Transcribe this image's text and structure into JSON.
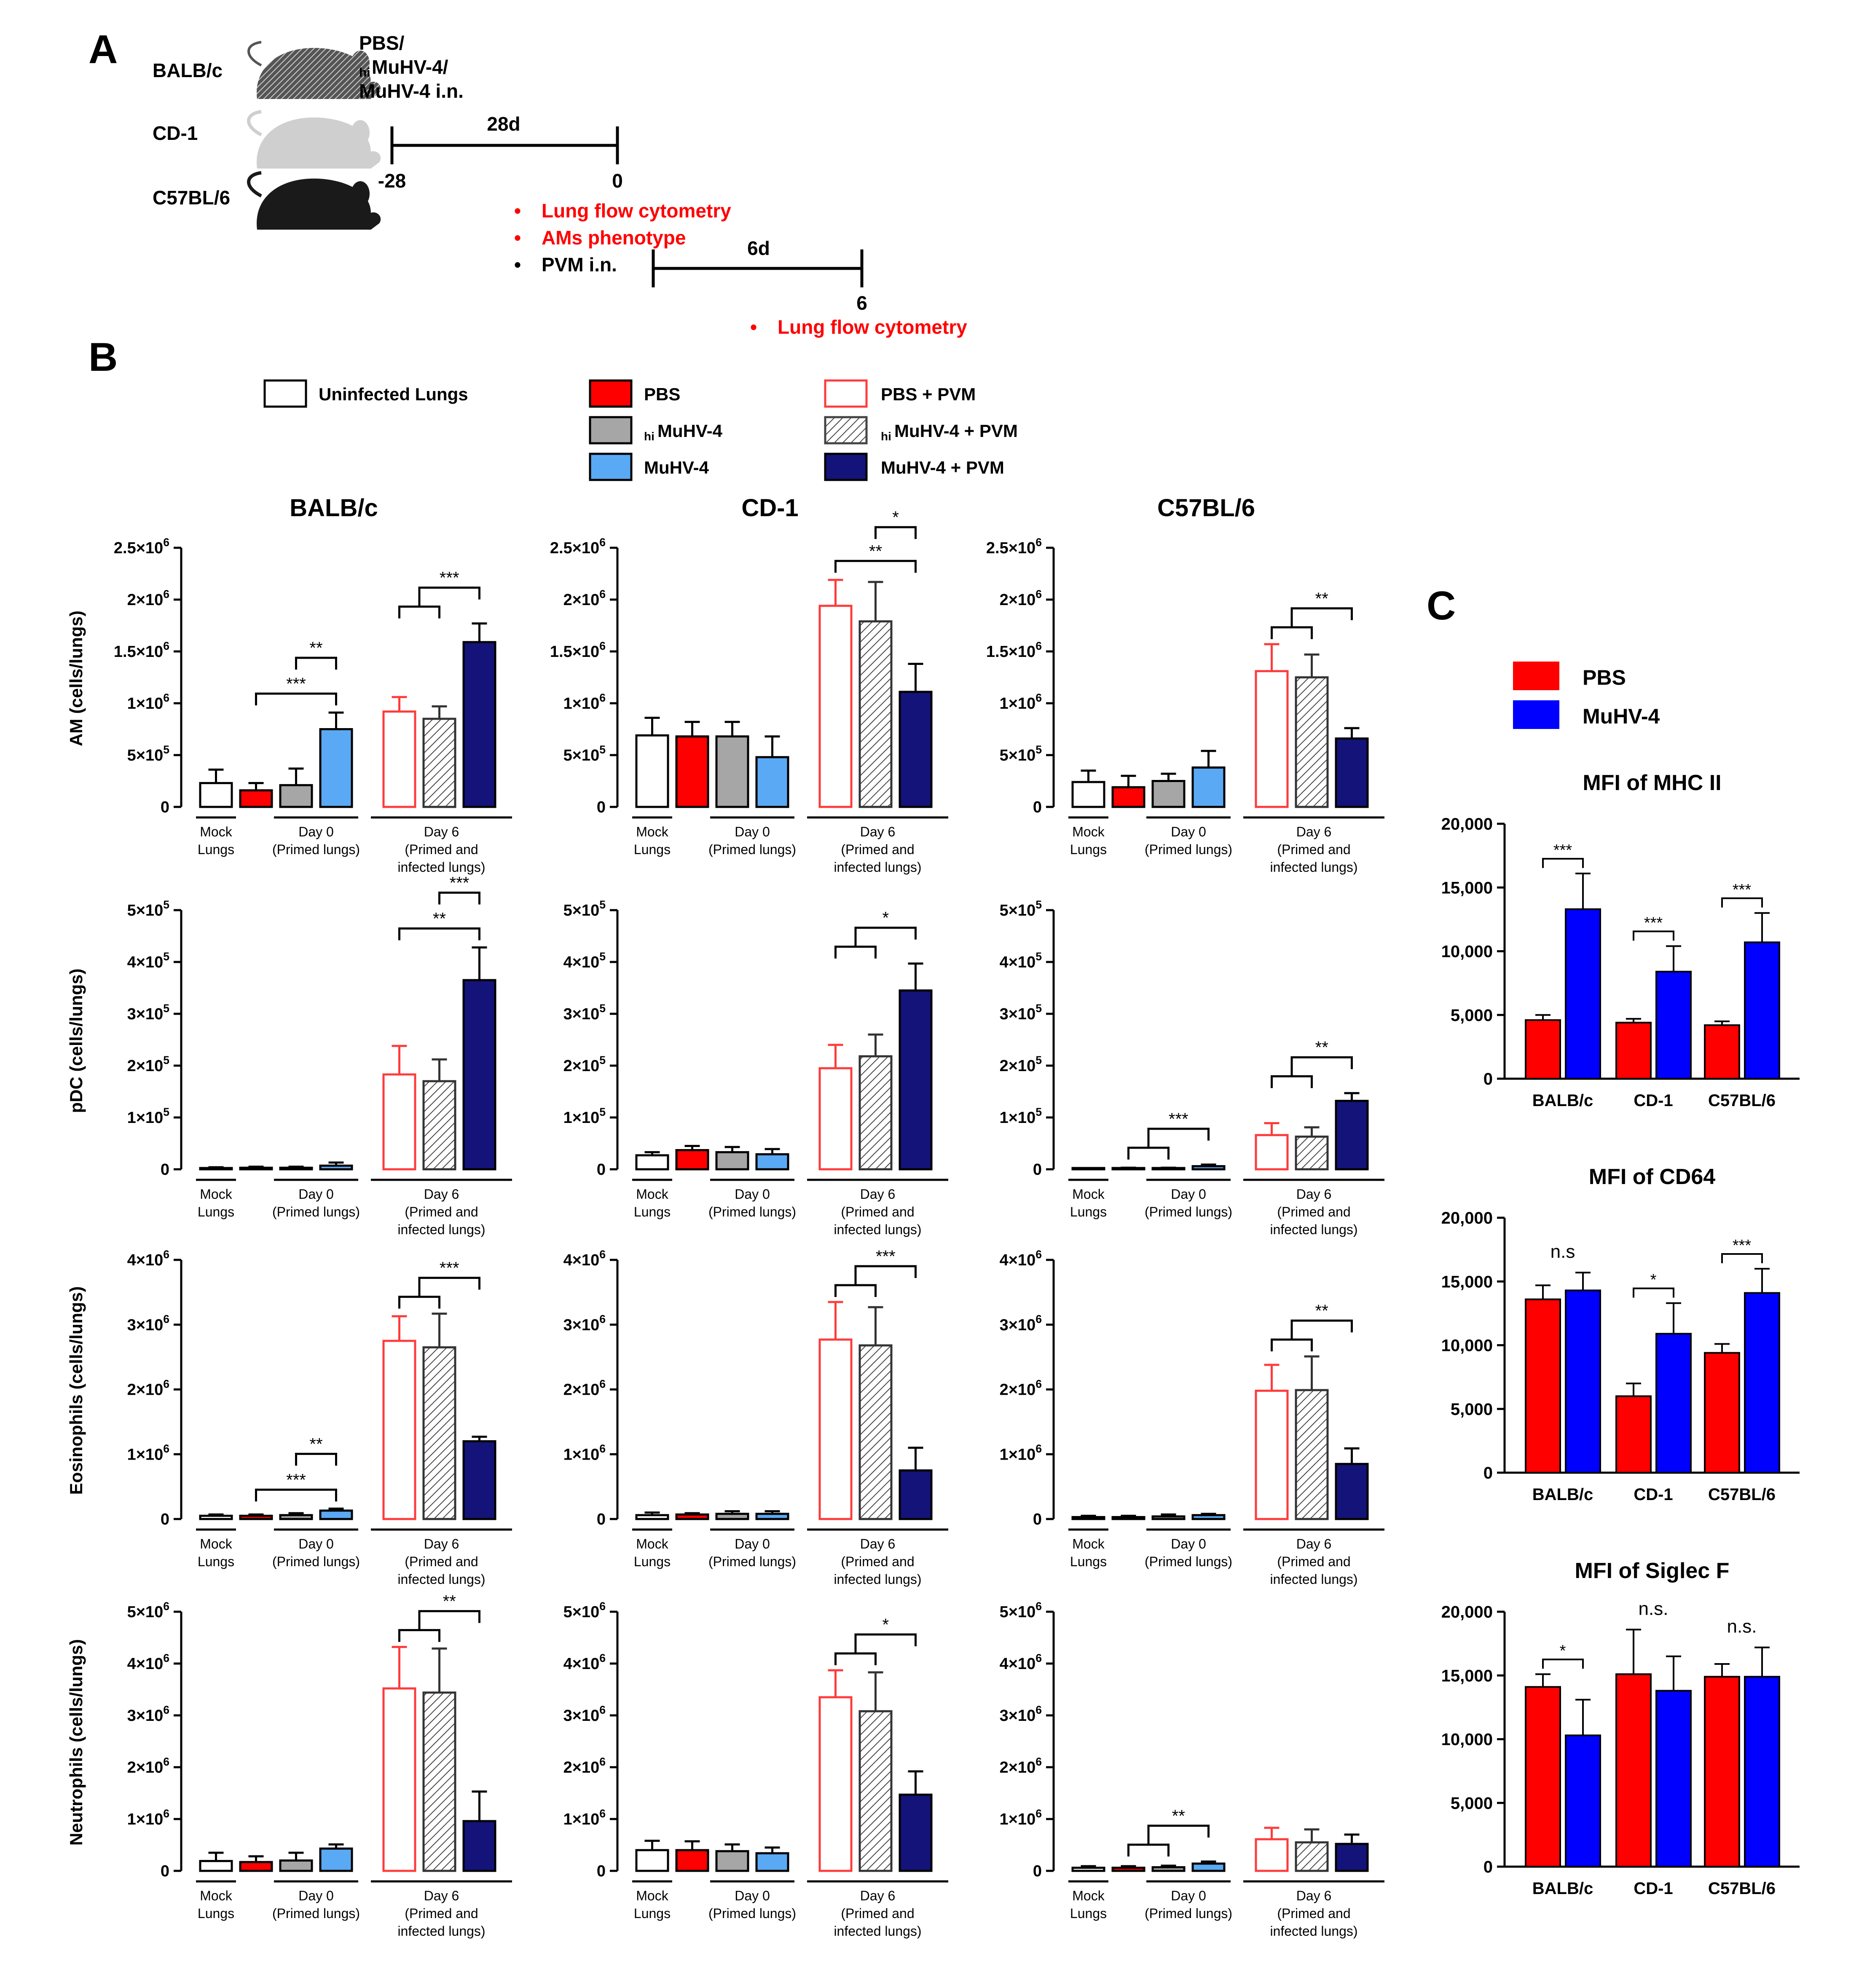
{
  "colors": {
    "pbs": "#ff0000",
    "himuhv": "#a6a6a6",
    "muhv": "#5aa9f5",
    "pvm_outline": "#ff3b3b",
    "muhv_pvm": "#14137a",
    "c_pbs": "#ff0000",
    "c_muhv": "#0000ff",
    "red_text": "#ff0000"
  },
  "panel_a": {
    "label": "A",
    "strains": [
      "BALB/c",
      "CD-1",
      "C57BL/6"
    ],
    "treatment": [
      "PBS/",
      "hi",
      "MuHV-4/",
      "MuHV-4 i.n."
    ],
    "t1_duration": "28d",
    "t1_start": "-28",
    "t1_end": "0",
    "bullets": [
      {
        "text": "Lung flow cytometry",
        "kind": "red"
      },
      {
        "text": "AMs phenotype",
        "kind": "red"
      },
      {
        "text": "PVM i.n.",
        "kind": "black"
      }
    ],
    "t2_duration": "6d",
    "t2_end": "6",
    "bullet2": "Lung flow cytometry"
  },
  "panel_b": {
    "label": "B",
    "legend": [
      {
        "label": "Uninfected Lungs",
        "style": "white"
      },
      {
        "label": "PBS",
        "style": "pbs"
      },
      {
        "label": "MuHV-4",
        "style": "himuhv",
        "sub": "hi"
      },
      {
        "label": "MuHV-4",
        "style": "muhv"
      },
      {
        "label": "PBS + PVM",
        "style": "pbs_pvm"
      },
      {
        "label": "MuHV-4 + PVM",
        "style": "himuhv_pvm",
        "sub": "hi"
      },
      {
        "label": "MuHV-4 + PVM",
        "style": "muhv_pvm"
      }
    ],
    "strain_titles": [
      "BALB/c",
      "CD-1",
      "C57BL/6"
    ],
    "xgroups": [
      [
        "Mock",
        "Lungs"
      ],
      [
        "Day 0",
        "(Primed lungs)"
      ],
      [
        "Day 6",
        "(Primed and",
        "infected lungs)"
      ]
    ],
    "row_labels": [
      "AM (cells/lungs)",
      "pDC (cells/lungs)",
      "Eosinophils (cells/lungs)",
      "Neutrophils (cells/lungs)"
    ],
    "bar_styles": [
      "white",
      "pbs",
      "himuhv",
      "muhv",
      "pbs_pvm",
      "himuhv_pvm",
      "muhv_pvm"
    ]
  },
  "panel_c": {
    "label": "C",
    "legend": [
      {
        "label": "PBS",
        "style": "c_pbs"
      },
      {
        "label": "MuHV-4",
        "style": "c_muhv"
      }
    ]
  },
  "chart_data": [
    {
      "id": "am-balbc",
      "type": "bar",
      "title": "BALB/c",
      "ylabel": "AM (cells/lungs)",
      "ylim": [
        0,
        2500000
      ],
      "ticks": [
        "0",
        "5×10⁵",
        "1×10⁶",
        "1.5×10⁶",
        "2×10⁶",
        "2.5×10⁶"
      ],
      "values": [
        230000,
        160000,
        210000,
        750000,
        920000,
        850000,
        1590000
      ],
      "errors": [
        130000,
        70000,
        160000,
        160000,
        140000,
        120000,
        180000
      ],
      "sig": [
        {
          "from": 1,
          "to": 3,
          "label": "***",
          "bracket": "simple"
        },
        {
          "from": 2,
          "to": 3,
          "label": "**",
          "bracket": "simple"
        },
        {
          "from": [
            4,
            5
          ],
          "to": 6,
          "label": "***",
          "bracket": "group"
        }
      ]
    },
    {
      "id": "am-cd1",
      "type": "bar",
      "title": "CD-1",
      "ylabel": "",
      "ylim": [
        0,
        2500000
      ],
      "ticks": [
        "0",
        "5×10⁵",
        "1×10⁶",
        "1.5×10⁶",
        "2×10⁶",
        "2.5×10⁶"
      ],
      "values": [
        690000,
        680000,
        680000,
        480000,
        1940000,
        1790000,
        1110000
      ],
      "errors": [
        170000,
        140000,
        140000,
        200000,
        250000,
        380000,
        270000
      ],
      "sig": [
        {
          "from": 4,
          "to": 6,
          "label": "**",
          "bracket": "simple"
        },
        {
          "from": 5,
          "to": 6,
          "label": "*",
          "bracket": "simple"
        }
      ]
    },
    {
      "id": "am-c57",
      "type": "bar",
      "title": "C57BL/6",
      "ylabel": "",
      "ylim": [
        0,
        2500000
      ],
      "ticks": [
        "0",
        "5×10⁵",
        "1×10⁶",
        "1.5×10⁶",
        "2×10⁶",
        "2.5×10⁶"
      ],
      "values": [
        240000,
        190000,
        250000,
        380000,
        1310000,
        1250000,
        660000
      ],
      "errors": [
        110000,
        110000,
        70000,
        160000,
        260000,
        220000,
        100000
      ],
      "sig": [
        {
          "from": [
            4,
            5
          ],
          "to": 6,
          "label": "**",
          "bracket": "group"
        }
      ]
    },
    {
      "id": "pdc-balbc",
      "type": "bar",
      "title": "",
      "ylabel": "pDC (cells/lungs)",
      "ylim": [
        0,
        500000
      ],
      "ticks": [
        "0",
        "1×10⁵",
        "2×10⁵",
        "3×10⁵",
        "4×10⁵",
        "5×10⁵"
      ],
      "values": [
        2000,
        3000,
        3000,
        7000,
        183000,
        170000,
        365000
      ],
      "errors": [
        2000,
        2000,
        2000,
        6000,
        55000,
        42000,
        63000
      ],
      "sig": [
        {
          "from": 4,
          "to": 6,
          "label": "**",
          "bracket": "simple"
        },
        {
          "from": 5,
          "to": 6,
          "label": "***",
          "bracket": "simple"
        }
      ]
    },
    {
      "id": "pdc-cd1",
      "type": "bar",
      "title": "",
      "ylabel": "",
      "ylim": [
        0,
        500000
      ],
      "ticks": [
        "0",
        "1×10⁵",
        "2×10⁵",
        "3×10⁵",
        "4×10⁵",
        "5×10⁵"
      ],
      "values": [
        27000,
        37000,
        33000,
        29000,
        195000,
        218000,
        345000
      ],
      "errors": [
        6000,
        8000,
        10000,
        10000,
        45000,
        42000,
        52000
      ],
      "sig": [
        {
          "from": [
            4,
            5
          ],
          "to": 6,
          "label": "*",
          "bracket": "group"
        }
      ]
    },
    {
      "id": "pdc-c57",
      "type": "bar",
      "title": "",
      "ylabel": "",
      "ylim": [
        0,
        500000
      ],
      "ticks": [
        "0",
        "1×10⁵",
        "2×10⁵",
        "3×10⁵",
        "4×10⁵",
        "5×10⁵"
      ],
      "values": [
        1000,
        2000,
        2000,
        6000,
        66000,
        63000,
        132000
      ],
      "errors": [
        1000,
        1000,
        1000,
        3000,
        23000,
        18000,
        15000
      ],
      "sig": [
        {
          "from": [
            1,
            2
          ],
          "to": 3,
          "label": "***",
          "bracket": "group"
        },
        {
          "from": [
            4,
            5
          ],
          "to": 6,
          "label": "**",
          "bracket": "group"
        }
      ]
    },
    {
      "id": "eos-balbc",
      "type": "bar",
      "title": "",
      "ylabel": "Eosinophils (cells/lungs)",
      "ylim": [
        0,
        4000000
      ],
      "ticks": [
        "0",
        "1×10⁶",
        "2×10⁶",
        "3×10⁶",
        "4×10⁶"
      ],
      "values": [
        50000,
        50000,
        60000,
        130000,
        2750000,
        2650000,
        1200000
      ],
      "errors": [
        20000,
        20000,
        30000,
        30000,
        380000,
        520000,
        70000
      ],
      "sig": [
        {
          "from": 1,
          "to": 3,
          "label": "***",
          "bracket": "simple"
        },
        {
          "from": 2,
          "to": 3,
          "label": "**",
          "bracket": "simple"
        },
        {
          "from": [
            4,
            5
          ],
          "to": 6,
          "label": "***",
          "bracket": "group"
        }
      ]
    },
    {
      "id": "eos-cd1",
      "type": "bar",
      "title": "",
      "ylabel": "",
      "ylim": [
        0,
        4000000
      ],
      "ticks": [
        "0",
        "1×10⁶",
        "2×10⁶",
        "3×10⁶",
        "4×10⁶"
      ],
      "values": [
        60000,
        70000,
        80000,
        80000,
        2770000,
        2680000,
        750000
      ],
      "errors": [
        40000,
        20000,
        40000,
        40000,
        580000,
        590000,
        350000
      ],
      "sig": [
        {
          "from": [
            4,
            5
          ],
          "to": 6,
          "label": "***",
          "bracket": "group"
        }
      ]
    },
    {
      "id": "eos-c57",
      "type": "bar",
      "title": "",
      "ylabel": "",
      "ylim": [
        0,
        4000000
      ],
      "ticks": [
        "0",
        "1×10⁶",
        "2×10⁶",
        "3×10⁶",
        "4×10⁶"
      ],
      "values": [
        30000,
        30000,
        40000,
        60000,
        1980000,
        1990000,
        850000
      ],
      "errors": [
        20000,
        20000,
        30000,
        20000,
        400000,
        520000,
        240000
      ],
      "sig": [
        {
          "from": [
            4,
            5
          ],
          "to": 6,
          "label": "**",
          "bracket": "group"
        }
      ]
    },
    {
      "id": "neu-balbc",
      "type": "bar",
      "title": "",
      "ylabel": "Neutrophils (cells/lungs)",
      "ylim": [
        0,
        5000000
      ],
      "ticks": [
        "0",
        "1×10⁶",
        "2×10⁶",
        "3×10⁶",
        "4×10⁶",
        "5×10⁶"
      ],
      "values": [
        190000,
        170000,
        200000,
        430000,
        3520000,
        3440000,
        960000
      ],
      "errors": [
        160000,
        110000,
        150000,
        80000,
        800000,
        850000,
        570000
      ],
      "sig": [
        {
          "from": [
            4,
            5
          ],
          "to": 6,
          "label": "**",
          "bracket": "group"
        }
      ]
    },
    {
      "id": "neu-cd1",
      "type": "bar",
      "title": "",
      "ylabel": "",
      "ylim": [
        0,
        5000000
      ],
      "ticks": [
        "0",
        "1×10⁶",
        "2×10⁶",
        "3×10⁶",
        "4×10⁶",
        "5×10⁶"
      ],
      "values": [
        400000,
        400000,
        380000,
        340000,
        3350000,
        3080000,
        1470000
      ],
      "errors": [
        180000,
        170000,
        130000,
        110000,
        520000,
        750000,
        450000
      ],
      "sig": [
        {
          "from": [
            4,
            5
          ],
          "to": 6,
          "label": "*",
          "bracket": "group"
        }
      ]
    },
    {
      "id": "neu-c57",
      "type": "bar",
      "title": "",
      "ylabel": "",
      "ylim": [
        0,
        5000000
      ],
      "ticks": [
        "0",
        "1×10⁶",
        "2×10⁶",
        "3×10⁶",
        "4×10⁶",
        "5×10⁶"
      ],
      "values": [
        60000,
        60000,
        70000,
        140000,
        610000,
        550000,
        520000
      ],
      "errors": [
        30000,
        30000,
        30000,
        40000,
        220000,
        250000,
        180000
      ],
      "sig": [
        {
          "from": [
            1,
            2
          ],
          "to": 3,
          "label": "**",
          "bracket": "group"
        }
      ]
    },
    {
      "id": "mfi-mhc",
      "type": "bar",
      "title": "MFI of MHC II",
      "categories": [
        "BALB/c",
        "CD-1",
        "C57BL/6"
      ],
      "series": [
        {
          "name": "PBS",
          "values": [
            4600,
            4400,
            4200
          ],
          "errors": [
            400,
            300,
            300
          ]
        },
        {
          "name": "MuHV-4",
          "values": [
            13300,
            8400,
            10700
          ],
          "errors": [
            2800,
            2000,
            2300
          ]
        }
      ],
      "ylim": [
        0,
        20000
      ],
      "ticks": [
        "0",
        "5,000",
        "10,000",
        "15,000",
        "20,000"
      ],
      "labels": [
        "***",
        "***",
        "***"
      ]
    },
    {
      "id": "mfi-cd64",
      "type": "bar",
      "title": "MFI of CD64",
      "categories": [
        "BALB/c",
        "CD-1",
        "C57BL/6"
      ],
      "series": [
        {
          "name": "PBS",
          "values": [
            13600,
            6000,
            9400
          ],
          "errors": [
            1100,
            1000,
            700
          ]
        },
        {
          "name": "MuHV-4",
          "values": [
            14300,
            10900,
            14100
          ],
          "errors": [
            1400,
            2400,
            1900
          ]
        }
      ],
      "ylim": [
        0,
        20000
      ],
      "ticks": [
        "0",
        "5,000",
        "10,000",
        "15,000",
        "20,000"
      ],
      "labels": [
        "n.s",
        "*",
        "***"
      ]
    },
    {
      "id": "mfi-siglec",
      "type": "bar",
      "title": "MFI of Siglec F",
      "categories": [
        "BALB/c",
        "CD-1",
        "C57BL/6"
      ],
      "series": [
        {
          "name": "PBS",
          "values": [
            14100,
            15100,
            14900
          ],
          "errors": [
            1000,
            3500,
            1000
          ]
        },
        {
          "name": "MuHV-4",
          "values": [
            10300,
            13800,
            14900
          ],
          "errors": [
            2800,
            2700,
            2300
          ]
        }
      ],
      "ylim": [
        0,
        20000
      ],
      "ticks": [
        "0",
        "5,000",
        "10,000",
        "15,000",
        "20,000"
      ],
      "labels": [
        "*",
        "n.s.",
        "n.s."
      ]
    }
  ]
}
